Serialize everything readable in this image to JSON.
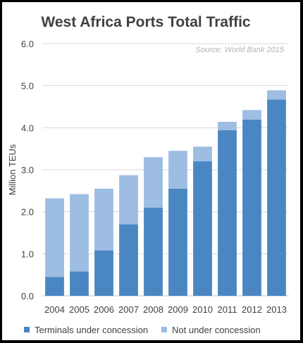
{
  "chart_data": {
    "type": "bar",
    "stacked": true,
    "title": "West Africa Ports Total Traffic",
    "source_note": "Source: World Bank 2015",
    "xlabel": "",
    "ylabel": "Million TEUs",
    "ylim": [
      0,
      6
    ],
    "ytick_step": 1,
    "ytick_labels": [
      "0.0",
      "1.0",
      "2.0",
      "3.0",
      "4.0",
      "5.0",
      "6.0"
    ],
    "grid": true,
    "legend_position": "bottom",
    "categories": [
      "2004",
      "2005",
      "2006",
      "2007",
      "2008",
      "2009",
      "2010",
      "2011",
      "2012",
      "2013"
    ],
    "series": [
      {
        "name": "Terminals under concession",
        "color": "#4a86c2",
        "values": [
          0.45,
          0.58,
          1.08,
          1.7,
          2.1,
          2.55,
          3.2,
          3.94,
          4.19,
          4.67
        ]
      },
      {
        "name": "Not under concession",
        "color": "#9dbde3",
        "values": [
          1.87,
          1.84,
          1.47,
          1.17,
          1.2,
          0.9,
          0.35,
          0.2,
          0.23,
          0.22
        ]
      }
    ]
  }
}
